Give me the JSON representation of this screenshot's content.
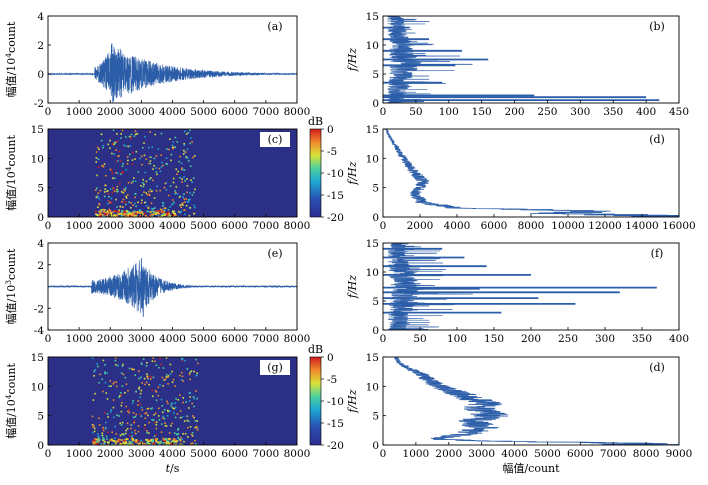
{
  "chart_data": [
    {
      "id": "a",
      "type": "line",
      "panel_label": "(a)",
      "ylabel_prefix": "幅值/10",
      "ylabel_exp": "4",
      "ylabel_suffix": "count",
      "xlim": [
        0,
        8000
      ],
      "ylim": [
        -2,
        4
      ],
      "xticks": [
        0,
        1000,
        2000,
        3000,
        4000,
        5000,
        6000,
        7000,
        8000
      ],
      "yticks": [
        -2,
        0,
        2,
        4
      ],
      "signal": {
        "onset": 1500,
        "peak_time": 2050,
        "peak_amp": 2.1,
        "min_amp": -1.9,
        "decay_end": 7800
      },
      "color": "#2b5da8"
    },
    {
      "id": "b",
      "type": "line",
      "panel_label": "(b)",
      "orientation": "vertical",
      "ylabel": "f/Hz",
      "xlim": [
        0,
        450
      ],
      "ylim": [
        0,
        15
      ],
      "xticks": [
        0,
        50,
        100,
        150,
        200,
        250,
        300,
        350,
        400,
        450
      ],
      "yticks": [
        0,
        5,
        10,
        15
      ],
      "peaks": [
        {
          "f": 0.5,
          "amp": 420
        },
        {
          "f": 1.0,
          "amp": 400
        },
        {
          "f": 1.3,
          "amp": 230
        },
        {
          "f": 3.5,
          "amp": 90
        },
        {
          "f": 6.5,
          "amp": 110
        },
        {
          "f": 7.5,
          "amp": 160
        },
        {
          "f": 9.0,
          "amp": 120
        },
        {
          "f": 11.0,
          "amp": 70
        },
        {
          "f": 13.0,
          "amp": 40
        }
      ],
      "color": "#2b5da8"
    },
    {
      "id": "c",
      "type": "heatmap",
      "panel_label": "(c)",
      "ylabel_prefix": "幅值/10",
      "ylabel_exp": "4",
      "ylabel_suffix": "count",
      "xlim": [
        0,
        8000
      ],
      "ylim": [
        0,
        15
      ],
      "xticks": [
        0,
        1000,
        2000,
        3000,
        4000,
        5000,
        6000,
        7000,
        8000
      ],
      "yticks": [
        0,
        5,
        10,
        15
      ],
      "colorbar": {
        "label": "dB",
        "range": [
          -20,
          0
        ],
        "ticks": [
          0,
          -5,
          -10,
          -15,
          -20
        ]
      },
      "energy": {
        "t_start": 1500,
        "t_end": 4700,
        "t_peak": 2100
      }
    },
    {
      "id": "d",
      "type": "line",
      "panel_label": "(d)",
      "orientation": "vertical",
      "ylabel": "f/Hz",
      "xlim": [
        0,
        16000
      ],
      "ylim": [
        0,
        15
      ],
      "xticks": [
        0,
        2000,
        4000,
        6000,
        8000,
        10000,
        12000,
        14000,
        16000
      ],
      "yticks": [
        0,
        5,
        10,
        15
      ],
      "profile": [
        [
          0.3,
          14500
        ],
        [
          0.6,
          9000
        ],
        [
          1.0,
          12500
        ],
        [
          1.5,
          4000
        ],
        [
          2.5,
          2100
        ],
        [
          4.0,
          1700
        ],
        [
          6.0,
          2200
        ],
        [
          8.0,
          1600
        ],
        [
          10.0,
          1100
        ],
        [
          12.0,
          700
        ],
        [
          14.0,
          300
        ],
        [
          15.0,
          200
        ]
      ],
      "color": "#2b5da8"
    },
    {
      "id": "e",
      "type": "line",
      "panel_label": "(e)",
      "ylabel_prefix": "幅值/10",
      "ylabel_exp": "3",
      "ylabel_suffix": "count",
      "xlim": [
        0,
        8000
      ],
      "ylim": [
        -4,
        4
      ],
      "xticks": [
        0,
        1000,
        2000,
        3000,
        4000,
        5000,
        6000,
        7000,
        8000
      ],
      "yticks": [
        4,
        2,
        -2,
        -4
      ],
      "signal": {
        "onset": 1400,
        "peak_time": 3000,
        "peak_amp": 2.6,
        "min_amp": -2.8,
        "decay_end": 5000
      },
      "color": "#2b5da8"
    },
    {
      "id": "f",
      "type": "line",
      "panel_label": "(f)",
      "orientation": "vertical",
      "ylabel": "f/Hz",
      "xlim": [
        0,
        400
      ],
      "ylim": [
        0,
        15
      ],
      "xticks": [
        0,
        50,
        100,
        150,
        200,
        250,
        300,
        350,
        400
      ],
      "yticks": [
        0,
        5,
        10,
        15
      ],
      "peaks": [
        {
          "f": 3.0,
          "amp": 160
        },
        {
          "f": 4.5,
          "amp": 260
        },
        {
          "f": 5.5,
          "amp": 210
        },
        {
          "f": 6.5,
          "amp": 320
        },
        {
          "f": 7.3,
          "amp": 370
        },
        {
          "f": 9.5,
          "amp": 200
        },
        {
          "f": 11.0,
          "amp": 140
        },
        {
          "f": 12.5,
          "amp": 110
        },
        {
          "f": 14.0,
          "amp": 80
        }
      ],
      "color": "#2b5da8"
    },
    {
      "id": "g",
      "type": "heatmap",
      "panel_label": "(g)",
      "ylabel_prefix": "幅值/10",
      "ylabel_exp": "4",
      "ylabel_suffix": "count",
      "xlabel": "t/s",
      "xlim": [
        0,
        8000
      ],
      "ylim": [
        0,
        15
      ],
      "xticks": [
        0,
        1000,
        2000,
        3000,
        4000,
        5000,
        6000,
        7000,
        8000
      ],
      "yticks": [
        0,
        5,
        10,
        15
      ],
      "colorbar": {
        "label": "dB",
        "range": [
          -20,
          0
        ],
        "ticks": [
          0,
          -5,
          -10,
          -15,
          -20
        ]
      },
      "energy": {
        "t_start": 1400,
        "t_end": 4800,
        "t_peak": 3000
      }
    },
    {
      "id": "h",
      "type": "line",
      "panel_label": "(d)",
      "orientation": "vertical",
      "ylabel": "f/Hz",
      "xlabel": "幅值/count",
      "xlim": [
        0,
        9000
      ],
      "ylim": [
        0,
        15
      ],
      "xticks": [
        0,
        1000,
        2000,
        3000,
        4000,
        5000,
        6000,
        7000,
        8000,
        9000
      ],
      "yticks": [
        0,
        5,
        10,
        15
      ],
      "profile": [
        [
          0.3,
          8000
        ],
        [
          0.7,
          3000
        ],
        [
          1.0,
          1600
        ],
        [
          2.0,
          2600
        ],
        [
          3.0,
          3000
        ],
        [
          4.0,
          2700
        ],
        [
          5.0,
          3300
        ],
        [
          6.0,
          2900
        ],
        [
          7.0,
          3100
        ],
        [
          8.0,
          2700
        ],
        [
          9.0,
          2200
        ],
        [
          10.0,
          1700
        ],
        [
          11.0,
          1400
        ],
        [
          12.0,
          1200
        ],
        [
          13.0,
          800
        ],
        [
          14.0,
          500
        ],
        [
          15.0,
          400
        ]
      ],
      "color": "#2b5da8"
    }
  ]
}
